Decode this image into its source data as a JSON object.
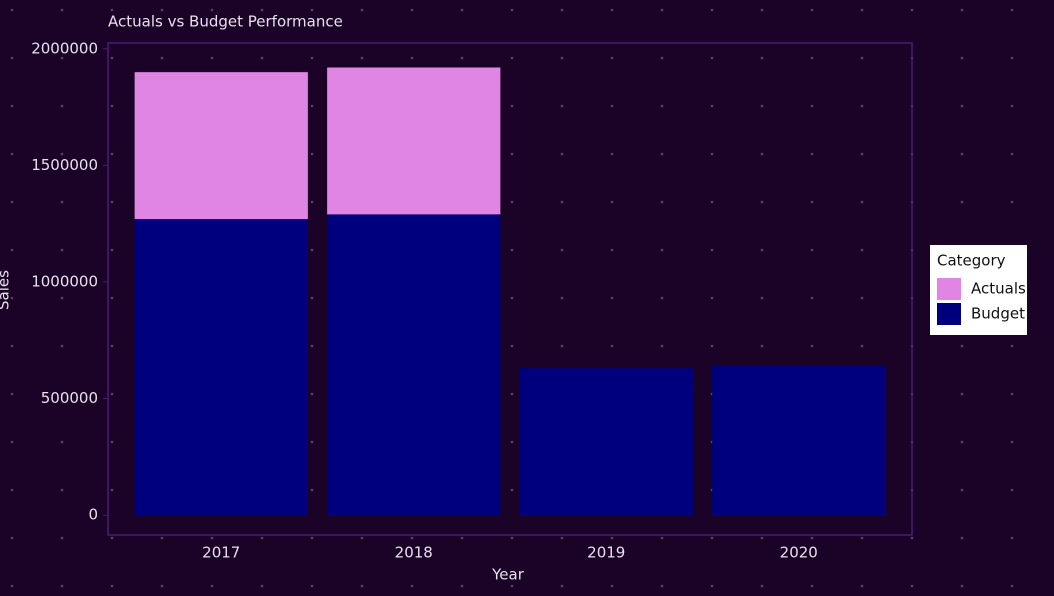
{
  "chart_data": {
    "type": "stacked_bar",
    "title": "Actuals vs Budget Performance",
    "x_label": "Year",
    "y_label": "Sales",
    "categories": [
      "2017",
      "2018",
      "2019",
      "2020"
    ],
    "series": [
      {
        "name": "Budget",
        "color": "#00007f",
        "values": [
          1270000,
          1290000,
          630000,
          640000
        ]
      },
      {
        "name": "Actuals",
        "color": "#e085e3",
        "values": [
          630000,
          630000,
          0,
          0
        ]
      }
    ],
    "ylim": [
      -85000,
      2025000
    ],
    "yticks": [
      0,
      500000,
      1000000,
      1500000,
      2000000
    ],
    "legend_title": "Category",
    "legend": "right"
  }
}
